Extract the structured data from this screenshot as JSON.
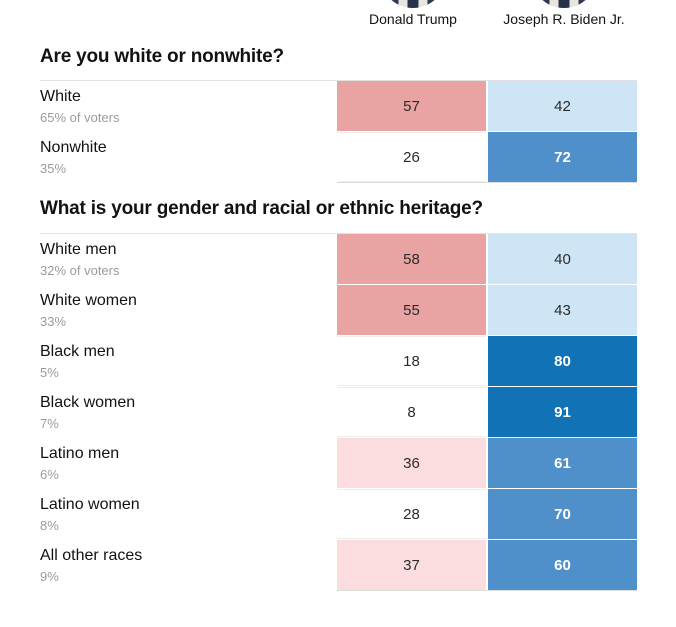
{
  "candidates": [
    {
      "name": "Donald Trump"
    },
    {
      "name": "Joseph R. Biden Jr."
    }
  ],
  "colors": {
    "trump_strong": "#e9a3a3",
    "trump_light": "#fbdde0",
    "biden_light": "#cde5f5",
    "biden_medium": "#4f90ca",
    "biden_strong": "#1173b5",
    "neutral_cell": "#ffffff",
    "rule_gray": "#e2e2e2"
  },
  "chart_data": {
    "type": "table",
    "columns": [
      "Donald Trump",
      "Joseph R. Biden Jr."
    ],
    "sections": [
      {
        "title": "Are you white or nonwhite?",
        "rows": [
          {
            "label": "White",
            "sublabel": "65% of voters",
            "values": [
              57,
              42
            ],
            "cell_colors": [
              "#e9a3a3",
              "#cde5f5"
            ]
          },
          {
            "label": "Nonwhite",
            "sublabel": "35%",
            "values": [
              26,
              72
            ],
            "cell_colors": [
              "#ffffff",
              "#4f90ca"
            ]
          }
        ]
      },
      {
        "title": "What is your gender and racial or ethnic heritage?",
        "rows": [
          {
            "label": "White men",
            "sublabel": "32% of voters",
            "values": [
              58,
              40
            ],
            "cell_colors": [
              "#e9a3a3",
              "#cde5f5"
            ]
          },
          {
            "label": "White women",
            "sublabel": "33%",
            "values": [
              55,
              43
            ],
            "cell_colors": [
              "#e9a3a3",
              "#cde5f5"
            ]
          },
          {
            "label": "Black men",
            "sublabel": "5%",
            "values": [
              18,
              80
            ],
            "cell_colors": [
              "#ffffff",
              "#1173b5"
            ]
          },
          {
            "label": "Black women",
            "sublabel": "7%",
            "values": [
              8,
              91
            ],
            "cell_colors": [
              "#ffffff",
              "#1173b5"
            ]
          },
          {
            "label": "Latino men",
            "sublabel": "6%",
            "values": [
              36,
              61
            ],
            "cell_colors": [
              "#fbdde0",
              "#4f90ca"
            ]
          },
          {
            "label": "Latino women",
            "sublabel": "8%",
            "values": [
              28,
              70
            ],
            "cell_colors": [
              "#ffffff",
              "#4f90ca"
            ]
          },
          {
            "label": "All other races",
            "sublabel": "9%",
            "values": [
              37,
              60
            ],
            "cell_colors": [
              "#fbdde0",
              "#4f90ca"
            ]
          }
        ]
      }
    ]
  }
}
